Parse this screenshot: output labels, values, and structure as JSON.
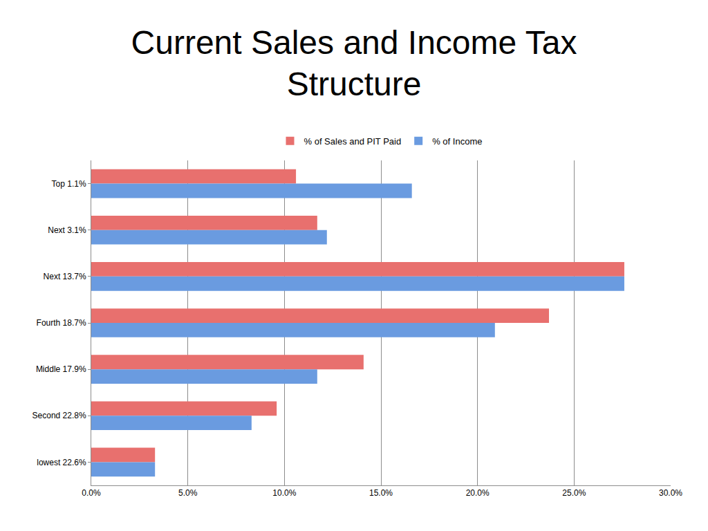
{
  "chart_data": {
    "type": "bar",
    "title": "Current Sales and Income Tax Structure",
    "orientation": "horizontal",
    "categories": [
      "Top 1.1%",
      "Next 3.1%",
      "Next 13.7%",
      "Fourth 18.7%",
      "Middle 17.9%",
      "Second 22.8%",
      "lowest 22.6%"
    ],
    "series": [
      {
        "name": "% of Sales and PIT Paid",
        "color": "#e8706e",
        "values": [
          10.6,
          11.7,
          27.6,
          23.7,
          14.1,
          9.6,
          3.3
        ]
      },
      {
        "name": "% of Income",
        "color": "#6a9be0",
        "values": [
          16.6,
          12.2,
          27.6,
          20.9,
          11.7,
          8.3,
          3.3
        ]
      }
    ],
    "xlim": [
      0,
      30
    ],
    "xticks": [
      {
        "value": 0,
        "label": "0.0%"
      },
      {
        "value": 5,
        "label": "5.0%"
      },
      {
        "value": 10,
        "label": "10.0%"
      },
      {
        "value": 15,
        "label": "15.0%"
      },
      {
        "value": 20,
        "label": "20.0%"
      },
      {
        "value": 25,
        "label": "25.0%"
      },
      {
        "value": 30,
        "label": "30.0%"
      }
    ],
    "grid": true,
    "legend": "top"
  }
}
